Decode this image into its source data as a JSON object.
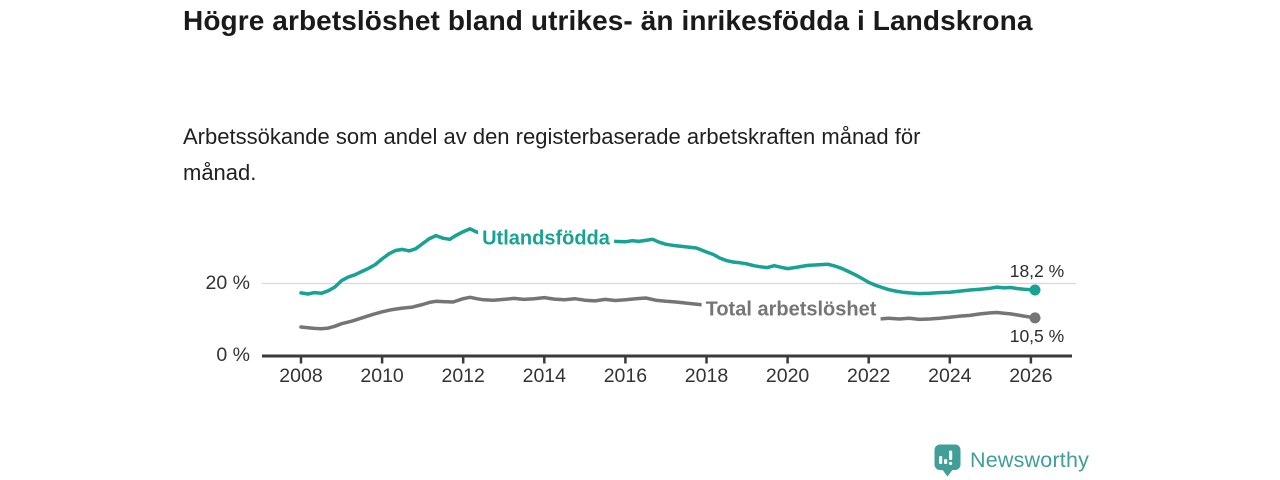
{
  "branding": {
    "label": "Newsworthy",
    "icon": "newsworthy-chart-bubble-icon",
    "color": "#419E98"
  },
  "chart_data": {
    "type": "line",
    "title": "Högre arbetslöshet bland utrikes- än inrikesfödda i Landskrona",
    "subtitle": "Arbetssökande som andel av den registerbaserade arbetskraften månad för månad.",
    "unit": "%",
    "xlabel": "",
    "ylabel": "",
    "xlim": [
      2007,
      2027
    ],
    "ylim": [
      0,
      39
    ],
    "grid": "horizontal-only",
    "legend": "inline-labels-on-lines",
    "x_ticks": [
      2008,
      2010,
      2012,
      2014,
      2016,
      2018,
      2020,
      2022,
      2024,
      2026
    ],
    "y_gridlines": [
      {
        "value": 20,
        "label": "20 %"
      },
      {
        "value": 0,
        "label": "0 %"
      }
    ],
    "colors": {
      "axis": "#3a3a3a",
      "grid": "#d8d8d8",
      "tick_text": "#333333",
      "value_label_text": "#2d2d2d"
    },
    "series": [
      {
        "id": "utlandsfodda",
        "name": "Utlandsfödda",
        "color": "#17A294",
        "end_value": 18.2,
        "end_label": "18,2 %",
        "end_label_side": "above",
        "points": [
          [
            2008,
            17.4
          ],
          [
            2008.17,
            17.1
          ],
          [
            2008.33,
            17.5
          ],
          [
            2008.5,
            17.3
          ],
          [
            2008.67,
            18
          ],
          [
            2008.83,
            19
          ],
          [
            2009,
            20.8
          ],
          [
            2009.17,
            21.8
          ],
          [
            2009.33,
            22.4
          ],
          [
            2009.5,
            23.3
          ],
          [
            2009.67,
            24.2
          ],
          [
            2009.83,
            25.2
          ],
          [
            2010,
            26.8
          ],
          [
            2010.17,
            28.2
          ],
          [
            2010.33,
            29.1
          ],
          [
            2010.5,
            29.4
          ],
          [
            2010.67,
            29
          ],
          [
            2010.83,
            29.6
          ],
          [
            2011,
            31
          ],
          [
            2011.17,
            32.4
          ],
          [
            2011.33,
            33.2
          ],
          [
            2011.5,
            32.5
          ],
          [
            2011.67,
            32.2
          ],
          [
            2011.83,
            33.3
          ],
          [
            2012,
            34.3
          ],
          [
            2012.17,
            35.1
          ],
          [
            2012.33,
            34.2
          ],
          [
            2012.5,
            33.8
          ],
          [
            2012.67,
            34
          ],
          [
            2012.83,
            33.6
          ],
          [
            2013,
            33.2
          ],
          [
            2013.25,
            33.6
          ],
          [
            2013.5,
            34
          ],
          [
            2013.75,
            33.5
          ],
          [
            2014,
            33.8
          ],
          [
            2014.25,
            33.4
          ],
          [
            2014.5,
            33
          ],
          [
            2014.75,
            32.7
          ],
          [
            2015,
            32.4
          ],
          [
            2015.25,
            32.2
          ],
          [
            2015.5,
            31.9
          ],
          [
            2015.75,
            31.6
          ],
          [
            2016,
            31.5
          ],
          [
            2016.17,
            31.8
          ],
          [
            2016.33,
            31.6
          ],
          [
            2016.5,
            31.9
          ],
          [
            2016.67,
            32.2
          ],
          [
            2016.83,
            31.4
          ],
          [
            2017,
            30.8
          ],
          [
            2017.25,
            30.4
          ],
          [
            2017.5,
            30.1
          ],
          [
            2017.75,
            29.8
          ],
          [
            2018,
            28.7
          ],
          [
            2018.17,
            28
          ],
          [
            2018.33,
            27
          ],
          [
            2018.5,
            26.3
          ],
          [
            2018.67,
            25.9
          ],
          [
            2018.83,
            25.7
          ],
          [
            2019,
            25.4
          ],
          [
            2019.17,
            24.9
          ],
          [
            2019.33,
            24.6
          ],
          [
            2019.5,
            24.4
          ],
          [
            2019.67,
            24.9
          ],
          [
            2019.83,
            24.5
          ],
          [
            2020,
            24.1
          ],
          [
            2020.17,
            24.4
          ],
          [
            2020.33,
            24.7
          ],
          [
            2020.5,
            25
          ],
          [
            2020.67,
            25.1
          ],
          [
            2020.83,
            25.2
          ],
          [
            2021,
            25.3
          ],
          [
            2021.17,
            24.8
          ],
          [
            2021.33,
            24.2
          ],
          [
            2021.5,
            23.3
          ],
          [
            2021.67,
            22.4
          ],
          [
            2021.83,
            21.4
          ],
          [
            2022,
            20.3
          ],
          [
            2022.17,
            19.5
          ],
          [
            2022.33,
            18.9
          ],
          [
            2022.5,
            18.3
          ],
          [
            2022.67,
            17.9
          ],
          [
            2022.83,
            17.6
          ],
          [
            2023,
            17.4
          ],
          [
            2023.25,
            17.2
          ],
          [
            2023.5,
            17.3
          ],
          [
            2023.75,
            17.5
          ],
          [
            2024,
            17.6
          ],
          [
            2024.25,
            17.9
          ],
          [
            2024.5,
            18.2
          ],
          [
            2024.75,
            18.4
          ],
          [
            2025,
            18.7
          ],
          [
            2025.17,
            19
          ],
          [
            2025.33,
            18.8
          ],
          [
            2025.5,
            18.9
          ],
          [
            2025.67,
            18.6
          ],
          [
            2025.83,
            18.4
          ],
          [
            2026,
            18.3
          ],
          [
            2026.1,
            18.2
          ]
        ]
      },
      {
        "id": "total",
        "name": "Total arbetslöshet",
        "color": "#757575",
        "end_value": 10.5,
        "end_label": "10,5 %",
        "end_label_side": "below",
        "points": [
          [
            2008,
            8
          ],
          [
            2008.17,
            7.8
          ],
          [
            2008.33,
            7.6
          ],
          [
            2008.5,
            7.5
          ],
          [
            2008.67,
            7.7
          ],
          [
            2008.83,
            8.2
          ],
          [
            2009,
            8.9
          ],
          [
            2009.25,
            9.6
          ],
          [
            2009.5,
            10.5
          ],
          [
            2009.75,
            11.4
          ],
          [
            2010,
            12.2
          ],
          [
            2010.25,
            12.8
          ],
          [
            2010.5,
            13.2
          ],
          [
            2010.75,
            13.5
          ],
          [
            2011,
            14.2
          ],
          [
            2011.17,
            14.8
          ],
          [
            2011.33,
            15.1
          ],
          [
            2011.5,
            15
          ],
          [
            2011.75,
            14.9
          ],
          [
            2012,
            15.8
          ],
          [
            2012.17,
            16.2
          ],
          [
            2012.33,
            15.8
          ],
          [
            2012.5,
            15.5
          ],
          [
            2012.75,
            15.4
          ],
          [
            2013,
            15.6
          ],
          [
            2013.25,
            15.9
          ],
          [
            2013.5,
            15.6
          ],
          [
            2013.75,
            15.8
          ],
          [
            2014,
            16.1
          ],
          [
            2014.25,
            15.7
          ],
          [
            2014.5,
            15.5
          ],
          [
            2014.75,
            15.8
          ],
          [
            2015,
            15.4
          ],
          [
            2015.25,
            15.2
          ],
          [
            2015.5,
            15.6
          ],
          [
            2015.75,
            15.3
          ],
          [
            2016,
            15.5
          ],
          [
            2016.25,
            15.8
          ],
          [
            2016.5,
            16
          ],
          [
            2016.75,
            15.4
          ],
          [
            2017,
            15.1
          ],
          [
            2017.25,
            14.9
          ],
          [
            2017.5,
            14.6
          ],
          [
            2018,
            14
          ],
          [
            2018.5,
            13.3
          ],
          [
            2019,
            12.7
          ],
          [
            2019.5,
            12.3
          ],
          [
            2020,
            12.1
          ],
          [
            2020.5,
            12.3
          ],
          [
            2021,
            12
          ],
          [
            2021.5,
            11.2
          ],
          [
            2022,
            10.5
          ],
          [
            2022.25,
            10.2
          ],
          [
            2022.5,
            10.4
          ],
          [
            2022.75,
            10.2
          ],
          [
            2023,
            10.4
          ],
          [
            2023.25,
            10.1
          ],
          [
            2023.5,
            10.2
          ],
          [
            2023.75,
            10.4
          ],
          [
            2024,
            10.7
          ],
          [
            2024.25,
            11
          ],
          [
            2024.5,
            11.2
          ],
          [
            2024.75,
            11.6
          ],
          [
            2025,
            11.9
          ],
          [
            2025.17,
            12
          ],
          [
            2025.33,
            11.8
          ],
          [
            2025.5,
            11.6
          ],
          [
            2025.67,
            11.3
          ],
          [
            2025.83,
            11
          ],
          [
            2026,
            10.7
          ],
          [
            2026.1,
            10.5
          ]
        ]
      }
    ]
  }
}
